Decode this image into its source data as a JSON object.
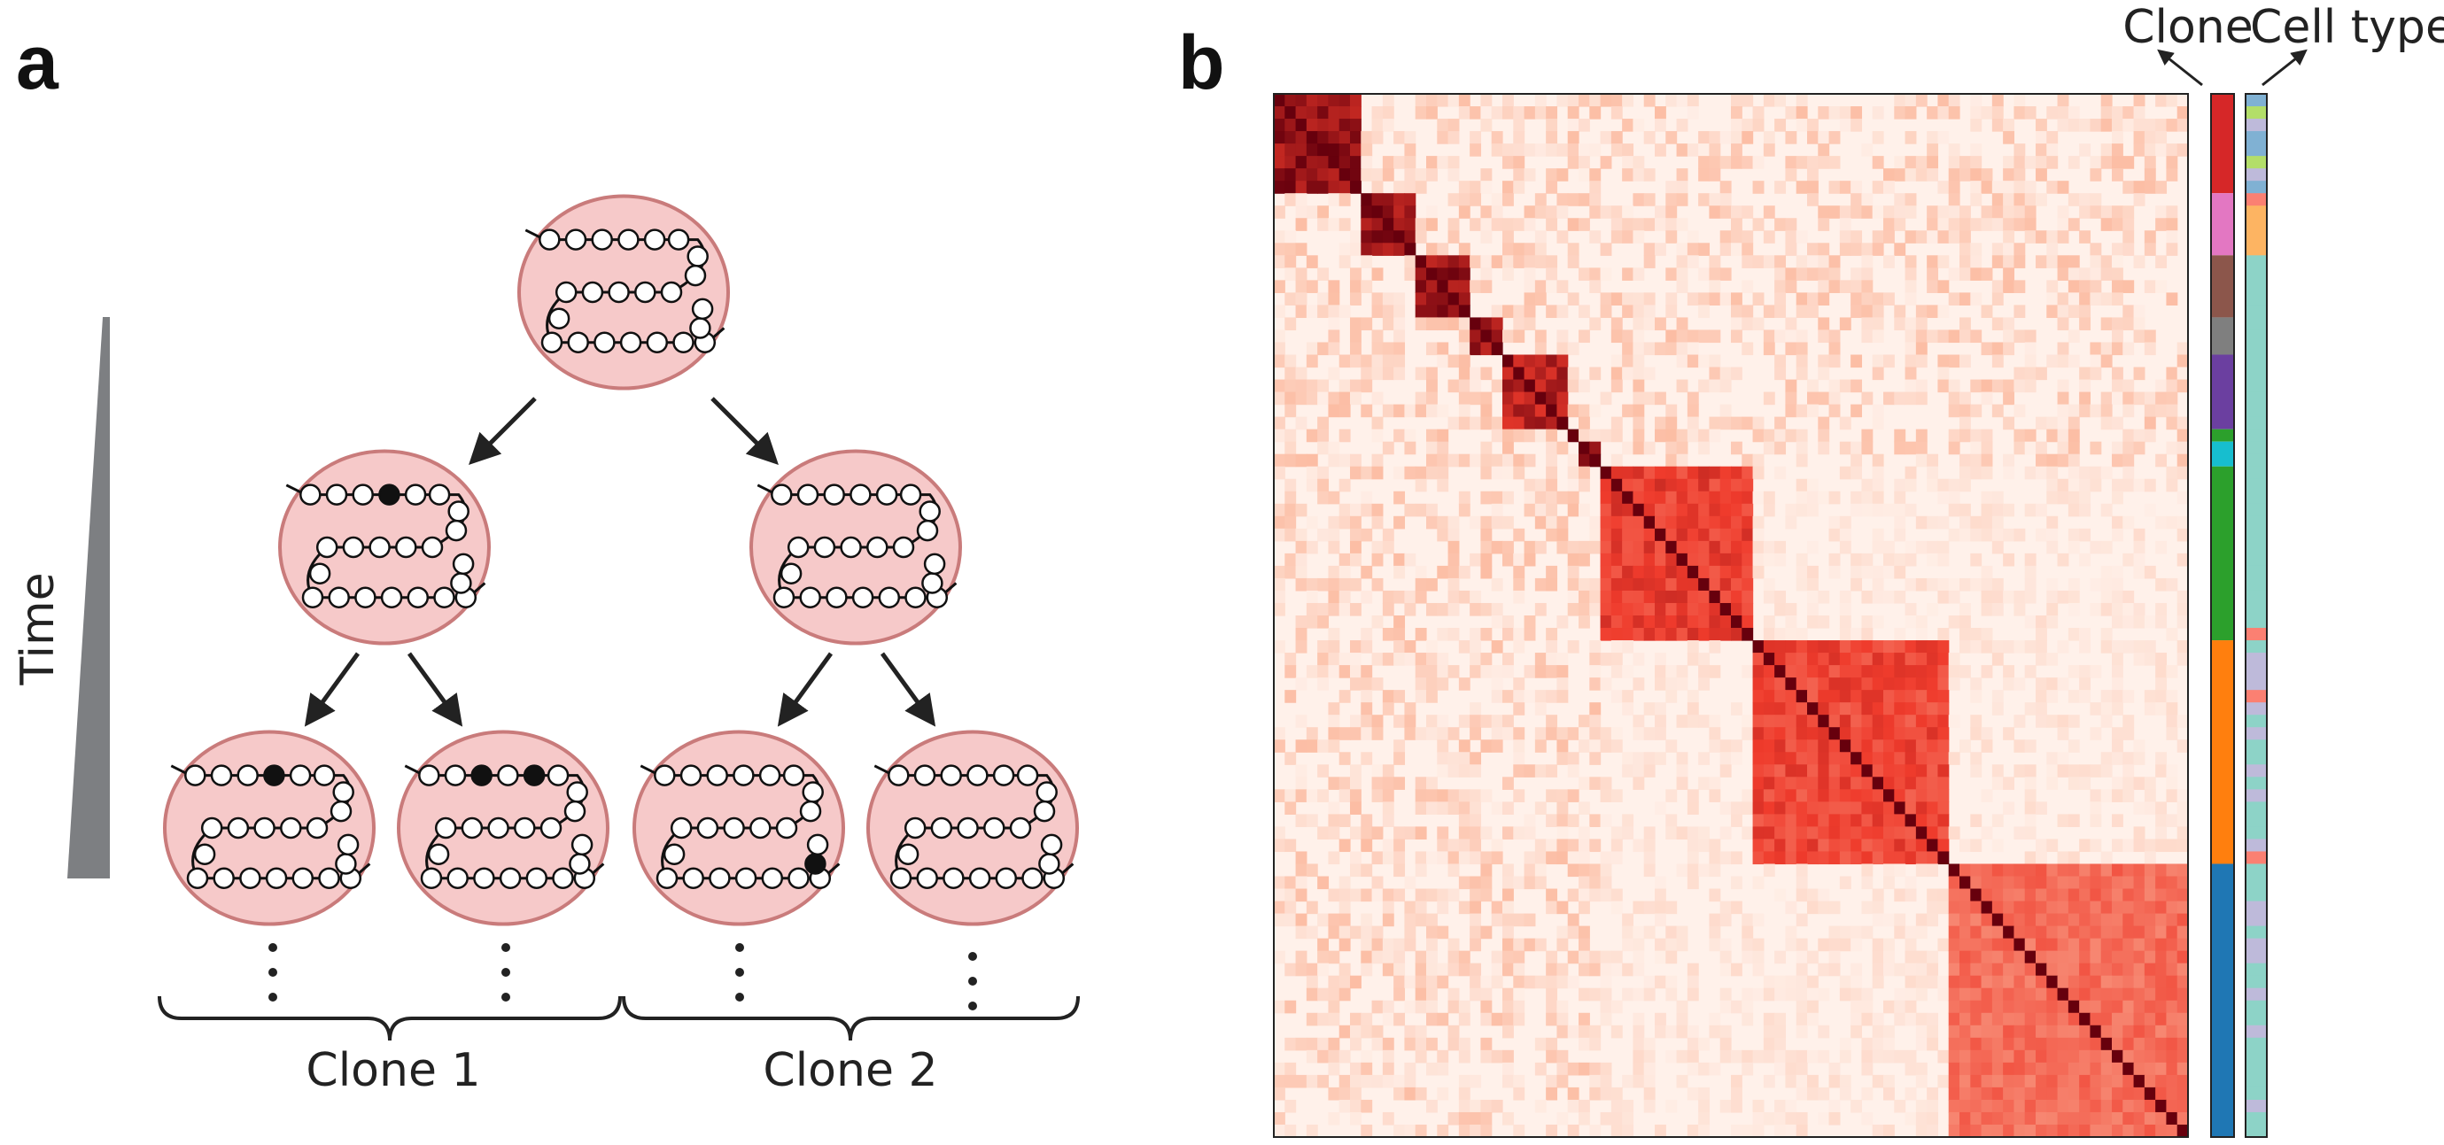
{
  "panel_a": {
    "label": "a",
    "time_label": "Time",
    "clone_labels": [
      "Clone 1",
      "Clone 2"
    ],
    "colors": {
      "cell_fill": "#f6c9c9",
      "cell_stroke": "#c97b7b",
      "bead_fill": "#ffffff",
      "mutation_fill": "#111111",
      "time_wedge": "#7d7f82"
    }
  },
  "panel_b": {
    "label": "b",
    "clone_header": "Clone",
    "celltype_header": "Cell type",
    "heatmap_colors": {
      "background": "#fff1ea",
      "low": "#fcbba1",
      "mid": "#ef3b2c",
      "high": "#67000d"
    },
    "clone_blocks": [
      {
        "size": 8,
        "color": "#d62728",
        "intensity": 1.0
      },
      {
        "size": 5,
        "color": "#e377c2",
        "intensity": 1.0
      },
      {
        "size": 5,
        "color": "#8c564b",
        "intensity": 1.0
      },
      {
        "size": 3,
        "color": "#7f7f7f",
        "intensity": 1.0
      },
      {
        "size": 6,
        "color": "#6b3fa0",
        "intensity": 0.9
      },
      {
        "size": 1,
        "color": "#2ca02c",
        "intensity": 1.0
      },
      {
        "size": 2,
        "color": "#17becf",
        "intensity": 1.0
      },
      {
        "size": 14,
        "color": "#2ca02c",
        "intensity": 0.75
      },
      {
        "size": 18,
        "color": "#ff7f0e",
        "intensity": 0.72
      },
      {
        "size": 22,
        "color": "#1f77b4",
        "intensity": 0.6
      }
    ],
    "cell_type_colors": [
      "#8dd3c7",
      "#bebada",
      "#80b1d3",
      "#fb8072",
      "#fdb462",
      "#b3de69"
    ]
  }
}
